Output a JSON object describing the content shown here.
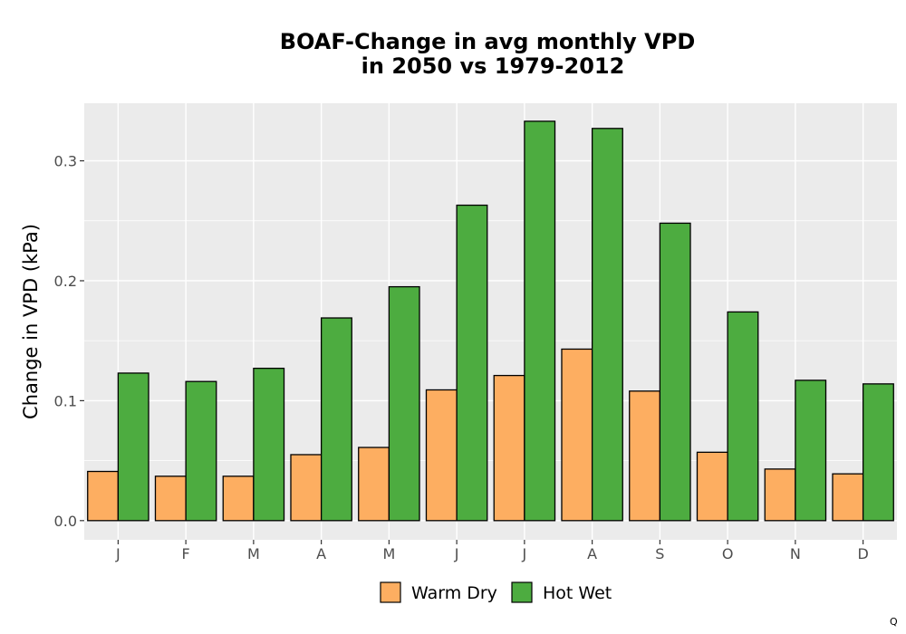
{
  "chart_data": {
    "type": "bar",
    "title_line1": "BOAF-Change in avg monthly VPD",
    "title_line2": "in 2050 vs 1979-2012",
    "xlabel": "",
    "ylabel": "Change in VPD (kPa)",
    "categories": [
      "J",
      "F",
      "M",
      "A",
      "M",
      "J",
      "J",
      "A",
      "S",
      "O",
      "N",
      "D"
    ],
    "series": [
      {
        "name": "Warm Dry",
        "color": "#FDAE61",
        "values": [
          0.041,
          0.037,
          0.037,
          0.055,
          0.061,
          0.109,
          0.121,
          0.143,
          0.108,
          0.057,
          0.043,
          0.039
        ]
      },
      {
        "name": "Hot Wet",
        "color": "#4DAC40",
        "values": [
          0.123,
          0.116,
          0.127,
          0.169,
          0.195,
          0.263,
          0.333,
          0.327,
          0.248,
          0.174,
          0.117,
          0.114
        ]
      }
    ],
    "ylim": [
      -0.016,
      0.348
    ],
    "yticks": [
      0.0,
      0.1,
      0.2,
      0.3
    ],
    "ytick_labels": [
      "0.0",
      "0.1",
      "0.2",
      "0.3"
    ],
    "grid": true,
    "legend_position": "bottom",
    "panel_bg": "#EBEBEB"
  },
  "corner_mark": "Q"
}
